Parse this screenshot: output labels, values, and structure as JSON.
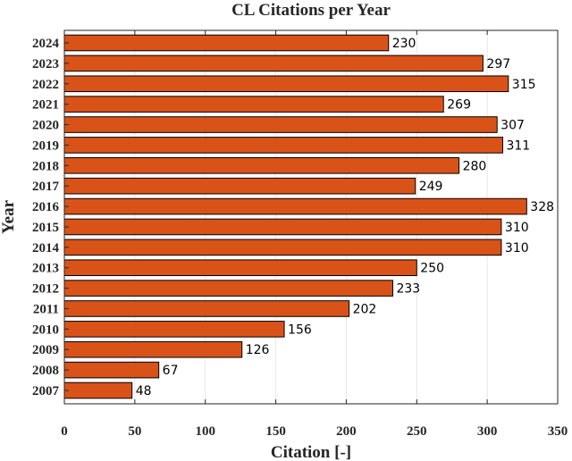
{
  "chart_data": {
    "type": "bar",
    "orientation": "horizontal",
    "title": "CL Citations per Year",
    "xlabel": "Citation [-]",
    "ylabel": "Year",
    "xlim": [
      0,
      350
    ],
    "x_ticks": [
      "0",
      "50",
      "100",
      "150",
      "200",
      "250",
      "300",
      "350"
    ],
    "x_tick_values": [
      0,
      50,
      100,
      150,
      200,
      250,
      300,
      350
    ],
    "grid": true,
    "bar_color": "#d95319",
    "categories": [
      "2024",
      "2023",
      "2022",
      "2021",
      "2020",
      "2019",
      "2018",
      "2017",
      "2016",
      "2015",
      "2014",
      "2013",
      "2012",
      "2011",
      "2010",
      "2009",
      "2008",
      "2007"
    ],
    "values": [
      230,
      297,
      315,
      269,
      307,
      311,
      280,
      249,
      328,
      310,
      310,
      250,
      233,
      202,
      156,
      126,
      67,
      48
    ],
    "value_labels": [
      "230",
      "297",
      "315",
      "269",
      "307",
      "311",
      "280",
      "249",
      "328",
      "310",
      "310",
      "250",
      "233",
      "202",
      "156",
      "126",
      "67",
      "48"
    ]
  }
}
